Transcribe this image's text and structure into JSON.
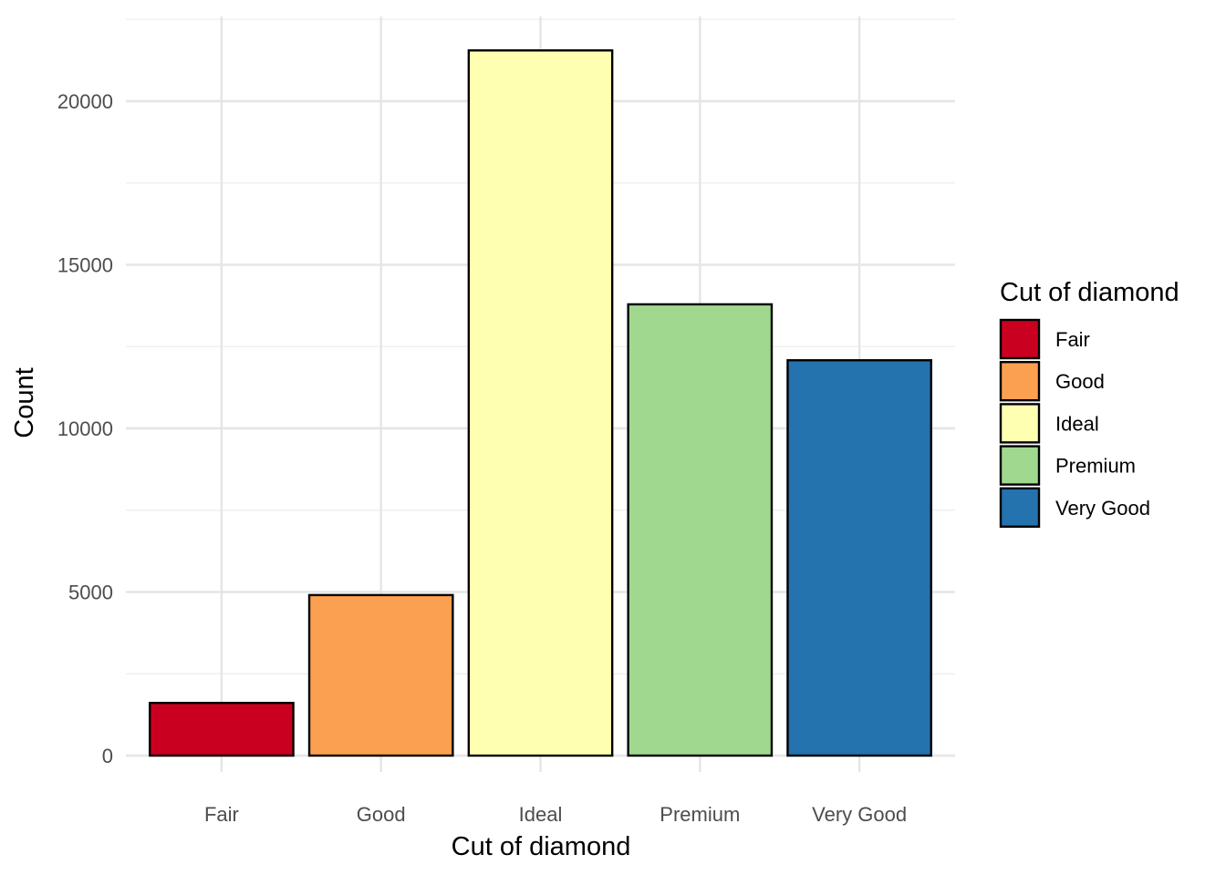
{
  "chart_data": {
    "type": "bar",
    "xlabel": "Cut of diamond",
    "ylabel": "Count",
    "categories": [
      "Fair",
      "Good",
      "Ideal",
      "Premium",
      "Very Good"
    ],
    "values": [
      1610,
      4906,
      21551,
      13791,
      12082
    ],
    "colors": [
      "#CA0020",
      "#FBA050",
      "#FFFFB2",
      "#A0D890",
      "#2472AE"
    ],
    "ylim": [
      0,
      22600
    ],
    "yticks": [
      0,
      5000,
      10000,
      15000,
      20000
    ],
    "ytick_labels": [
      "0",
      "5000",
      "10000",
      "15000",
      "20000"
    ],
    "grid": true,
    "legend": {
      "title": "Cut of diamond",
      "position": "right",
      "entries": [
        "Fair",
        "Good",
        "Ideal",
        "Premium",
        "Very Good"
      ]
    }
  }
}
